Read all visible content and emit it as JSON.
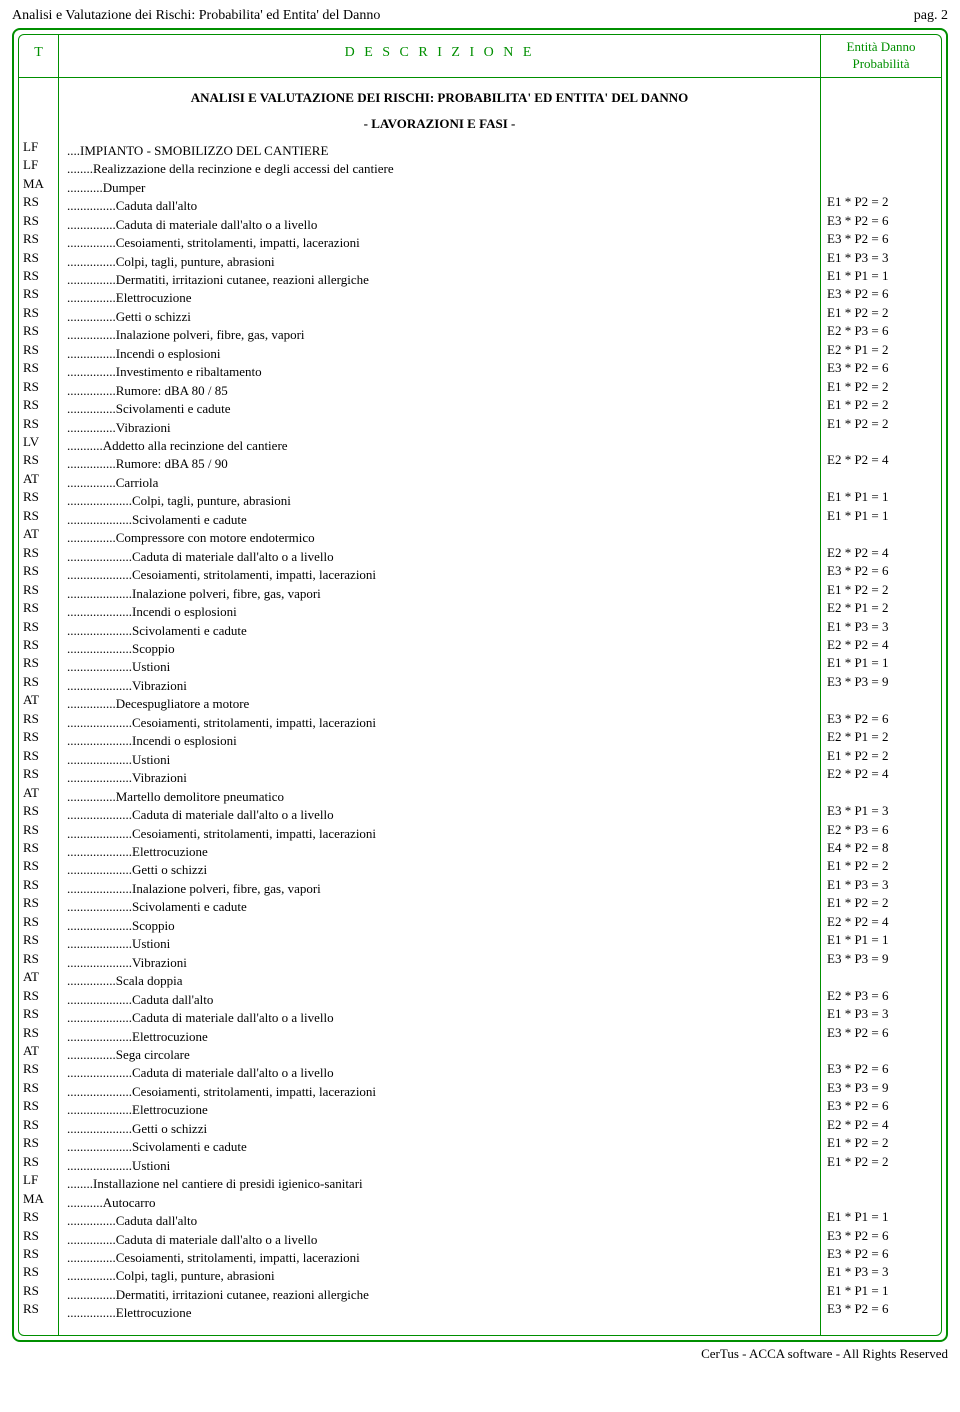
{
  "header_text": "Analisi e Valutazione dei Rischi: Probabilita' ed Entita' del Danno",
  "page_label": "pag. 2",
  "col_t": "T",
  "col_d": "D E S C R I Z I O N E",
  "col_e_1": "Entità Danno",
  "col_e_2": "Probabilità",
  "section_title": "ANALISI E VALUTAZIONE DEI RISCHI: PROBABILITA' ED ENTITA' DEL DANNO",
  "subsection": "- LAVORAZIONI E FASI -",
  "footer": "CerTus - ACCA software - All Rights Reserved",
  "colors": {
    "border": "#008f00",
    "accent": "#008f00",
    "text": "#000000",
    "bg": "#ffffff"
  },
  "rows": [
    {
      "t": "LF",
      "d": "....IMPIANTO - SMOBILIZZO DEL CANTIERE",
      "e": ""
    },
    {
      "t": "LF",
      "d": "........Realizzazione della recinzione e degli accessi del cantiere",
      "e": ""
    },
    {
      "t": "MA",
      "d": "...........Dumper",
      "e": ""
    },
    {
      "t": "RS",
      "d": "...............Caduta dall'alto",
      "e": "E1 * P2 = 2"
    },
    {
      "t": "RS",
      "d": "...............Caduta di materiale dall'alto o a livello",
      "e": "E3 * P2 = 6"
    },
    {
      "t": "RS",
      "d": "...............Cesoiamenti, stritolamenti, impatti, lacerazioni",
      "e": "E3 * P2 = 6"
    },
    {
      "t": "RS",
      "d": "...............Colpi, tagli, punture, abrasioni",
      "e": "E1 * P3 = 3"
    },
    {
      "t": "RS",
      "d": "...............Dermatiti, irritazioni cutanee, reazioni allergiche",
      "e": "E1 * P1 = 1"
    },
    {
      "t": "RS",
      "d": "...............Elettrocuzione",
      "e": "E3 * P2 = 6"
    },
    {
      "t": "RS",
      "d": "...............Getti o schizzi",
      "e": "E1 * P2 = 2"
    },
    {
      "t": "RS",
      "d": "...............Inalazione polveri, fibre, gas, vapori",
      "e": "E2 * P3 = 6"
    },
    {
      "t": "RS",
      "d": "...............Incendi o esplosioni",
      "e": "E2 * P1 = 2"
    },
    {
      "t": "RS",
      "d": "...............Investimento e ribaltamento",
      "e": "E3 * P2 = 6"
    },
    {
      "t": "RS",
      "d": "...............Rumore: dBA 80 / 85",
      "e": "E1 * P2 = 2"
    },
    {
      "t": "RS",
      "d": "...............Scivolamenti e cadute",
      "e": "E1 * P2 = 2"
    },
    {
      "t": "RS",
      "d": "...............Vibrazioni",
      "e": "E1 * P2 = 2"
    },
    {
      "t": "LV",
      "d": "...........Addetto alla recinzione del cantiere",
      "e": ""
    },
    {
      "t": "RS",
      "d": "...............Rumore: dBA 85 / 90",
      "e": "E2 * P2 = 4"
    },
    {
      "t": "AT",
      "d": "...............Carriola",
      "e": ""
    },
    {
      "t": "RS",
      "d": "....................Colpi, tagli, punture, abrasioni",
      "e": "E1 * P1 = 1"
    },
    {
      "t": "RS",
      "d": "....................Scivolamenti e cadute",
      "e": "E1 * P1 = 1"
    },
    {
      "t": "AT",
      "d": "...............Compressore con motore endotermico",
      "e": ""
    },
    {
      "t": "RS",
      "d": "....................Caduta di materiale dall'alto o a livello",
      "e": "E2 * P2 = 4"
    },
    {
      "t": "RS",
      "d": "....................Cesoiamenti, stritolamenti, impatti, lacerazioni",
      "e": "E3 * P2 = 6"
    },
    {
      "t": "RS",
      "d": "....................Inalazione polveri, fibre, gas, vapori",
      "e": "E1 * P2 = 2"
    },
    {
      "t": "RS",
      "d": "....................Incendi o esplosioni",
      "e": "E2 * P1 = 2"
    },
    {
      "t": "RS",
      "d": "....................Scivolamenti e cadute",
      "e": "E1 * P3 = 3"
    },
    {
      "t": "RS",
      "d": "....................Scoppio",
      "e": "E2 * P2 = 4"
    },
    {
      "t": "RS",
      "d": "....................Ustioni",
      "e": "E1 * P1 = 1"
    },
    {
      "t": "RS",
      "d": "....................Vibrazioni",
      "e": "E3 * P3 = 9"
    },
    {
      "t": "AT",
      "d": "...............Decespugliatore a motore",
      "e": ""
    },
    {
      "t": "RS",
      "d": "....................Cesoiamenti, stritolamenti, impatti, lacerazioni",
      "e": "E3 * P2 = 6"
    },
    {
      "t": "RS",
      "d": "....................Incendi o esplosioni",
      "e": "E2 * P1 = 2"
    },
    {
      "t": "RS",
      "d": "....................Ustioni",
      "e": "E1 * P2 = 2"
    },
    {
      "t": "RS",
      "d": "....................Vibrazioni",
      "e": "E2 * P2 = 4"
    },
    {
      "t": "AT",
      "d": "...............Martello demolitore pneumatico",
      "e": ""
    },
    {
      "t": "RS",
      "d": "....................Caduta di materiale dall'alto o a livello",
      "e": "E3 * P1 = 3"
    },
    {
      "t": "RS",
      "d": "....................Cesoiamenti, stritolamenti, impatti, lacerazioni",
      "e": "E2 * P3 = 6"
    },
    {
      "t": "RS",
      "d": "....................Elettrocuzione",
      "e": "E4 * P2 = 8"
    },
    {
      "t": "RS",
      "d": "....................Getti o schizzi",
      "e": "E1 * P2 = 2"
    },
    {
      "t": "RS",
      "d": "....................Inalazione polveri, fibre, gas, vapori",
      "e": "E1 * P3 = 3"
    },
    {
      "t": "RS",
      "d": "....................Scivolamenti e cadute",
      "e": "E1 * P2 = 2"
    },
    {
      "t": "RS",
      "d": "....................Scoppio",
      "e": "E2 * P2 = 4"
    },
    {
      "t": "RS",
      "d": "....................Ustioni",
      "e": "E1 * P1 = 1"
    },
    {
      "t": "RS",
      "d": "....................Vibrazioni",
      "e": "E3 * P3 = 9"
    },
    {
      "t": "AT",
      "d": "...............Scala doppia",
      "e": ""
    },
    {
      "t": "RS",
      "d": "....................Caduta dall'alto",
      "e": "E2 * P3 = 6"
    },
    {
      "t": "RS",
      "d": "....................Caduta di materiale dall'alto o a livello",
      "e": "E1 * P3 = 3"
    },
    {
      "t": "RS",
      "d": "....................Elettrocuzione",
      "e": "E3 * P2 = 6"
    },
    {
      "t": "AT",
      "d": "...............Sega circolare",
      "e": ""
    },
    {
      "t": "RS",
      "d": "....................Caduta di materiale dall'alto o a livello",
      "e": "E3 * P2 = 6"
    },
    {
      "t": "RS",
      "d": "....................Cesoiamenti, stritolamenti, impatti, lacerazioni",
      "e": "E3 * P3 = 9"
    },
    {
      "t": "RS",
      "d": "....................Elettrocuzione",
      "e": "E3 * P2 = 6"
    },
    {
      "t": "RS",
      "d": "....................Getti o schizzi",
      "e": "E2 * P2 = 4"
    },
    {
      "t": "RS",
      "d": "....................Scivolamenti e cadute",
      "e": "E1 * P2 = 2"
    },
    {
      "t": "RS",
      "d": "....................Ustioni",
      "e": "E1 * P2 = 2"
    },
    {
      "t": "LF",
      "d": "........Installazione nel cantiere di presidi igienico-sanitari",
      "e": ""
    },
    {
      "t": "MA",
      "d": "...........Autocarro",
      "e": ""
    },
    {
      "t": "RS",
      "d": "...............Caduta dall'alto",
      "e": "E1 * P1 = 1"
    },
    {
      "t": "RS",
      "d": "...............Caduta di materiale dall'alto o a livello",
      "e": "E3 * P2 = 6"
    },
    {
      "t": "RS",
      "d": "...............Cesoiamenti, stritolamenti, impatti, lacerazioni",
      "e": "E3 * P2 = 6"
    },
    {
      "t": "RS",
      "d": "...............Colpi, tagli, punture, abrasioni",
      "e": "E1 * P3 = 3"
    },
    {
      "t": "RS",
      "d": "...............Dermatiti, irritazioni cutanee, reazioni allergiche",
      "e": "E1 * P1 = 1"
    },
    {
      "t": "RS",
      "d": "...............Elettrocuzione",
      "e": "E3 * P2 = 6"
    }
  ]
}
